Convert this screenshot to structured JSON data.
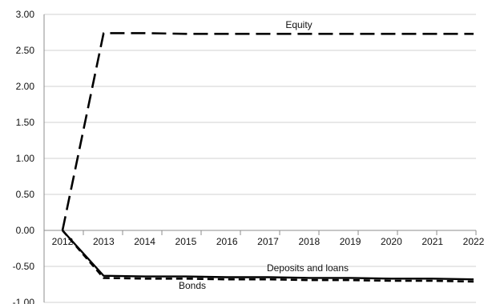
{
  "chart_data": {
    "type": "line",
    "title": "",
    "xlabel": "",
    "ylabel": "",
    "x": [
      "2012",
      "2013",
      "2014",
      "2015",
      "2016",
      "2017",
      "2018",
      "2019",
      "2020",
      "2021",
      "2022"
    ],
    "ylim": [
      -1.0,
      3.0
    ],
    "yticks": [
      "-1.00",
      "-0.50",
      "0.00",
      "0.50",
      "1.00",
      "1.50",
      "2.00",
      "2.50",
      "3.00"
    ],
    "grid": true,
    "legend": "none (series labeled inline)",
    "series": [
      {
        "name": "Equity",
        "style": "long-dash",
        "color": "#000000",
        "values": [
          0.0,
          2.74,
          2.74,
          2.73,
          2.73,
          2.73,
          2.73,
          2.73,
          2.73,
          2.73,
          2.73
        ]
      },
      {
        "name": "Deposits and loans",
        "style": "solid",
        "color": "#000000",
        "values": [
          0.0,
          -0.63,
          -0.64,
          -0.64,
          -0.65,
          -0.65,
          -0.66,
          -0.66,
          -0.67,
          -0.67,
          -0.68
        ]
      },
      {
        "name": "Bonds",
        "style": "short-dash",
        "color": "#000000",
        "values": [
          0.0,
          -0.66,
          -0.67,
          -0.67,
          -0.68,
          -0.68,
          -0.69,
          -0.69,
          -0.7,
          -0.7,
          -0.71
        ]
      }
    ]
  }
}
